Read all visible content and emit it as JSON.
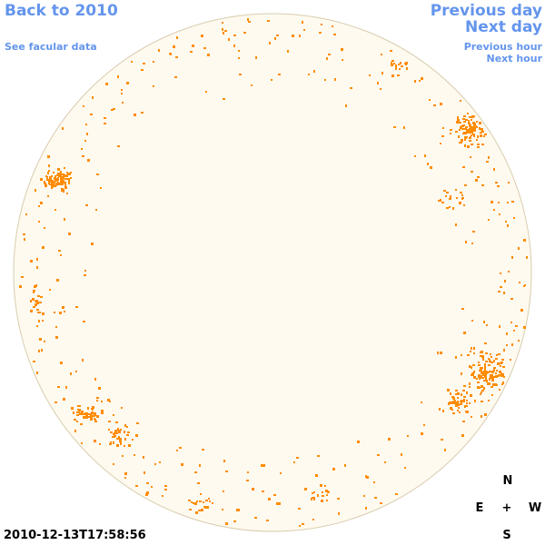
{
  "nav": {
    "back_label": "Back to 2010",
    "facular_label": "See facular data",
    "prev_day_label": "Previous day",
    "next_day_label": "Next day",
    "prev_hour_label": "Previous hour",
    "next_hour_label": "Next hour"
  },
  "compass": {
    "north": "N",
    "east": "E",
    "center": "+",
    "west": "W",
    "south": "S"
  },
  "timestamp": "2010-12-13T17:58:56",
  "colors": {
    "link": "#6495ed",
    "disk_fill": "#fffaf0",
    "disk_outline": "#d9ccae",
    "facula": "#ff8c00",
    "background": "#ffffff"
  }
}
